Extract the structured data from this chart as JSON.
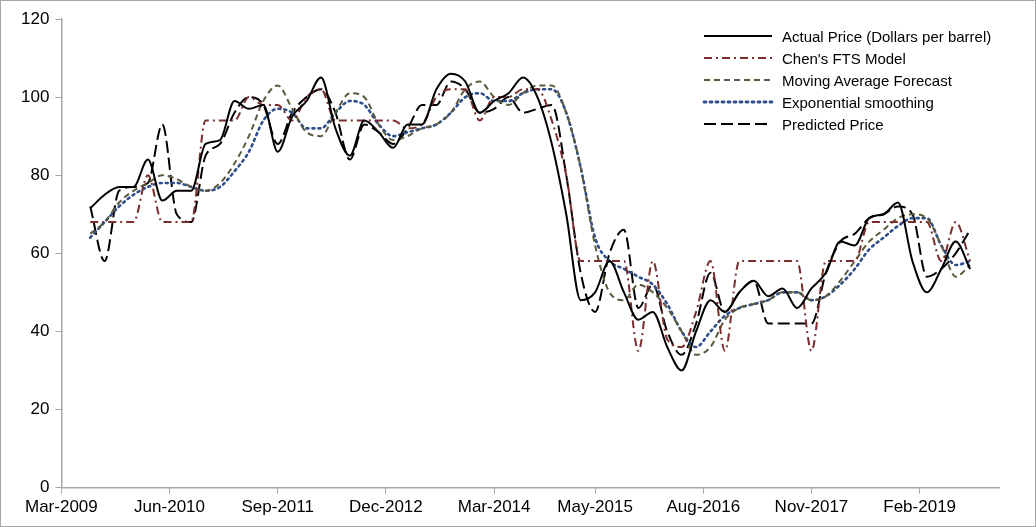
{
  "chart_data": {
    "type": "line",
    "legend": "top right",
    "marker": "none",
    "grid": false,
    "x": [
      "2009-07",
      "2009-09",
      "2009-11",
      "2010-01",
      "2010-03",
      "2010-05",
      "2010-07",
      "2010-09",
      "2010-11",
      "2011-01",
      "2011-03",
      "2011-05",
      "2011-07",
      "2011-09",
      "2011-11",
      "2012-01",
      "2012-03",
      "2012-05",
      "2012-07",
      "2012-09",
      "2012-11",
      "2013-01",
      "2013-03",
      "2013-05",
      "2013-07",
      "2013-09",
      "2013-11",
      "2014-01",
      "2014-03",
      "2014-05",
      "2014-07",
      "2014-09",
      "2014-11",
      "2015-01",
      "2015-03",
      "2015-05",
      "2015-07",
      "2015-09",
      "2015-11",
      "2016-01",
      "2016-03",
      "2016-05",
      "2016-07",
      "2016-09",
      "2016-11",
      "2017-01",
      "2017-03",
      "2017-05",
      "2017-07",
      "2017-09",
      "2017-11",
      "2018-01",
      "2018-03",
      "2018-05",
      "2018-07",
      "2018-09",
      "2018-11",
      "2019-01",
      "2019-03",
      "2019-05",
      "2019-07",
      "2019-09"
    ],
    "xlim": [
      "2009-03",
      "2020-01"
    ],
    "xticks": [
      {
        "value": "2009-03",
        "label": "Mar-2009"
      },
      {
        "value": "2010-06",
        "label": "Jun-2010"
      },
      {
        "value": "2011-09",
        "label": "Sep-2011"
      },
      {
        "value": "2012-12",
        "label": "Dec-2012"
      },
      {
        "value": "2014-03",
        "label": "Mar-2014"
      },
      {
        "value": "2015-05",
        "label": "May-2015"
      },
      {
        "value": "2016-08",
        "label": "Aug-2016"
      },
      {
        "value": "2017-11",
        "label": "Nov-2017"
      },
      {
        "value": "2019-02",
        "label": "Feb-2019"
      }
    ],
    "ylim": [
      0,
      120
    ],
    "yticks": [
      0,
      20,
      40,
      60,
      80,
      100,
      120
    ],
    "series": [
      {
        "name": "Actual Price (Dollars per barrel)",
        "color": "#000000",
        "line_style": "solid",
        "values": [
          71.5,
          75,
          77,
          77,
          84,
          73.5,
          76,
          76,
          88,
          89,
          99,
          97,
          98,
          86,
          95,
          99,
          105,
          92,
          85,
          94,
          91,
          87,
          93,
          93,
          102,
          106,
          104,
          96,
          99,
          101,
          105,
          100,
          88,
          70,
          48,
          50,
          58,
          50,
          43,
          45,
          36,
          30,
          40,
          48,
          45,
          50,
          53,
          49,
          51,
          46,
          51,
          55,
          63,
          62,
          69,
          70,
          73,
          58,
          50,
          56,
          63,
          56
        ]
      },
      {
        "name": "Chen's FTS Model",
        "color": "#7b2c2c",
        "line_style": "dashdot",
        "values": [
          68,
          68,
          68,
          68,
          80,
          68,
          68,
          68,
          94,
          94,
          94,
          100,
          98,
          98,
          94,
          100,
          102,
          94,
          94,
          94,
          94,
          94,
          92,
          93,
          100,
          102,
          102,
          94,
          100,
          100,
          102,
          102,
          94,
          80,
          58,
          58,
          58,
          58,
          35,
          58,
          38,
          36,
          45,
          58,
          35,
          58,
          58,
          58,
          58,
          58,
          35,
          58,
          58,
          58,
          68,
          68,
          68,
          68,
          68,
          58,
          68,
          58
        ]
      },
      {
        "name": "Moving Average Forecast",
        "color": "#5b5a3e",
        "line_style": "dashed",
        "values": [
          65,
          68,
          73,
          76,
          78,
          80,
          79,
          77,
          76,
          78,
          83,
          90,
          99,
          103,
          97,
          91,
          90,
          96,
          101,
          100,
          93,
          89,
          90,
          92,
          93,
          96,
          102,
          104,
          100,
          98,
          101,
          103,
          103,
          96,
          82,
          62,
          50,
          48,
          52,
          50,
          46,
          40,
          34,
          36,
          43,
          46,
          47,
          48,
          50,
          50,
          48,
          49,
          53,
          58,
          63,
          66,
          69,
          70,
          69,
          62,
          54,
          57
        ]
      },
      {
        "name": "Exponential smoothing",
        "color": "#2f4f8a",
        "line_style": "dotted",
        "values": [
          64,
          68,
          72,
          75,
          77,
          78,
          78,
          77,
          76,
          77,
          81,
          86,
          94,
          97,
          96,
          92,
          92,
          96,
          99,
          98,
          93,
          90,
          91,
          92,
          93,
          96,
          100,
          101,
          99,
          99,
          101,
          102,
          102,
          96,
          82,
          64,
          58,
          56,
          54,
          52,
          47,
          40,
          36,
          40,
          44,
          46,
          47,
          48,
          50,
          50,
          48,
          49,
          52,
          56,
          61,
          64,
          67,
          69,
          69,
          62,
          57,
          58
        ]
      },
      {
        "name": "Predicted Price",
        "color": "#000000",
        "line_style": "longdash",
        "values": [
          72,
          58,
          76,
          77,
          78,
          93,
          70,
          68,
          85,
          88,
          96,
          100,
          98,
          88,
          96,
          100,
          102,
          96,
          84,
          93,
          91,
          88,
          92,
          98,
          98,
          104,
          102,
          96,
          97,
          100,
          96,
          97,
          98,
          80,
          55,
          45,
          60,
          66,
          46,
          52,
          40,
          34,
          42,
          55,
          45,
          50,
          53,
          42,
          42,
          42,
          42,
          55,
          63,
          65,
          69,
          70,
          72,
          70,
          54,
          56,
          60,
          66
        ]
      }
    ]
  }
}
